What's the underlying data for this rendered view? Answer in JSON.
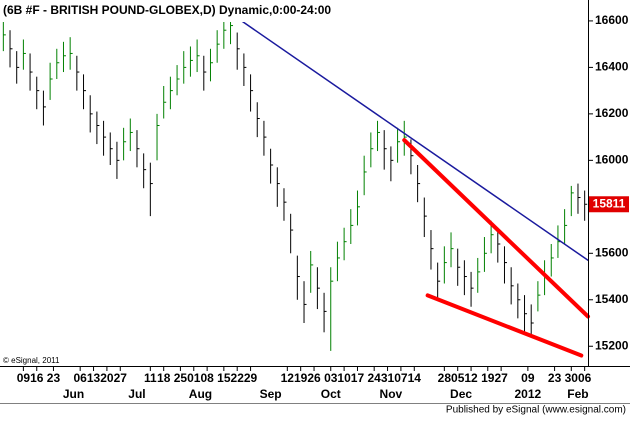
{
  "chart_data": {
    "type": "ohlc",
    "title": "(6B #F - BRITISH POUND-GLOBEX,D) Dynamic,0:00-24:00",
    "copyright": "© eSignal, 2011",
    "footer": "Published by eSignal (www.esignal.com)",
    "up_color": "#008000",
    "down_color": "#000000",
    "xlim": [
      0,
      176
    ],
    "ylim": [
      15115,
      16690
    ],
    "yticks": [
      15200,
      15400,
      15600,
      15800,
      16000,
      16200,
      16400,
      16600
    ],
    "xticks": [
      {
        "value": 7,
        "label": "09"
      },
      {
        "value": 11,
        "label": "16"
      },
      {
        "value": 16,
        "label": "23"
      },
      {
        "value": 24,
        "label": "06"
      },
      {
        "value": 28,
        "label": "13"
      },
      {
        "value": 32,
        "label": "20"
      },
      {
        "value": 36,
        "label": "27"
      },
      {
        "value": 45,
        "label": "11"
      },
      {
        "value": 49,
        "label": "18"
      },
      {
        "value": 54,
        "label": "25"
      },
      {
        "value": 58,
        "label": "01"
      },
      {
        "value": 62,
        "label": "08"
      },
      {
        "value": 67,
        "label": "15"
      },
      {
        "value": 71,
        "label": "22"
      },
      {
        "value": 75,
        "label": "29"
      },
      {
        "value": 86,
        "label": "12"
      },
      {
        "value": 90,
        "label": "19"
      },
      {
        "value": 94,
        "label": "26"
      },
      {
        "value": 99,
        "label": "03"
      },
      {
        "value": 103,
        "label": "10"
      },
      {
        "value": 107,
        "label": "17"
      },
      {
        "value": 112,
        "label": "24"
      },
      {
        "value": 116,
        "label": "31"
      },
      {
        "value": 120,
        "label": "07"
      },
      {
        "value": 124,
        "label": "14"
      },
      {
        "value": 133,
        "label": "28"
      },
      {
        "value": 137,
        "label": "05"
      },
      {
        "value": 141,
        "label": "12"
      },
      {
        "value": 146,
        "label": "19"
      },
      {
        "value": 150,
        "label": "27"
      },
      {
        "value": 158,
        "label": "09"
      },
      {
        "value": 166,
        "label": "23"
      },
      {
        "value": 171,
        "label": "30"
      },
      {
        "value": 175,
        "label": "06"
      }
    ],
    "month_labels": [
      {
        "value": 22,
        "label": "Jun"
      },
      {
        "value": 41,
        "label": "Jul"
      },
      {
        "value": 60,
        "label": "Aug"
      },
      {
        "value": 81,
        "label": "Sep"
      },
      {
        "value": 99,
        "label": "Oct"
      },
      {
        "value": 117,
        "label": "Nov"
      },
      {
        "value": 138,
        "label": "Dec"
      },
      {
        "value": 158,
        "label": "2012"
      },
      {
        "value": 173,
        "label": "Feb"
      }
    ],
    "x": [
      1,
      3,
      5,
      7,
      9,
      11,
      13,
      15,
      17,
      19,
      21,
      23,
      25,
      27,
      29,
      31,
      33,
      35,
      37,
      39,
      41,
      43,
      45,
      47,
      49,
      51,
      53,
      55,
      57,
      59,
      61,
      63,
      65,
      67,
      69,
      71,
      73,
      75,
      77,
      79,
      81,
      83,
      85,
      87,
      89,
      91,
      93,
      95,
      97,
      99,
      101,
      103,
      105,
      107,
      109,
      111,
      113,
      115,
      117,
      119,
      121,
      123,
      125,
      127,
      129,
      131,
      133,
      135,
      137,
      139,
      141,
      143,
      145,
      147,
      149,
      151,
      153,
      155,
      157,
      159,
      161,
      163,
      165,
      167,
      169,
      171,
      173,
      175
    ],
    "high": [
      16610,
      16560,
      16470,
      16520,
      16460,
      16360,
      16300,
      16420,
      16480,
      16510,
      16530,
      16450,
      16370,
      16280,
      16210,
      16170,
      16120,
      16080,
      16140,
      16180,
      16130,
      16030,
      15990,
      16200,
      16320,
      16360,
      16410,
      16470,
      16490,
      16520,
      16450,
      16480,
      16560,
      16610,
      16640,
      16550,
      16460,
      16370,
      16250,
      16170,
      16050,
      15970,
      15880,
      15770,
      15590,
      15480,
      15610,
      15540,
      15430,
      15540,
      15650,
      15710,
      15790,
      15870,
      16020,
      16120,
      16170,
      16130,
      16060,
      16140,
      16170,
      16090,
      15980,
      15840,
      15700,
      15560,
      15630,
      15690,
      15620,
      15570,
      15520,
      15580,
      15670,
      15740,
      15710,
      15630,
      15540,
      15470,
      15420,
      15380,
      15480,
      15570,
      15640,
      15720,
      15790,
      15890,
      15900,
      15870
    ],
    "low": [
      16470,
      16400,
      16330,
      16390,
      16300,
      16220,
      16150,
      16260,
      16350,
      16380,
      16390,
      16300,
      16220,
      16120,
      16070,
      16020,
      15980,
      15920,
      16000,
      16040,
      15970,
      15880,
      15760,
      16000,
      16180,
      16220,
      16280,
      16330,
      16360,
      16380,
      16300,
      16340,
      16420,
      16480,
      16500,
      16390,
      16320,
      16210,
      16100,
      16020,
      15900,
      15800,
      15740,
      15600,
      15400,
      15300,
      15430,
      15360,
      15260,
      15180,
      15480,
      15570,
      15640,
      15720,
      15850,
      15970,
      16040,
      15960,
      15910,
      15990,
      16020,
      15940,
      15820,
      15670,
      15530,
      15400,
      15470,
      15540,
      15460,
      15420,
      15370,
      15430,
      15520,
      15600,
      15560,
      15470,
      15380,
      15320,
      15260,
      15240,
      15350,
      15420,
      15500,
      15580,
      15640,
      15760,
      15770,
      15740
    ],
    "close": [
      16540,
      16480,
      16400,
      16460,
      16380,
      16300,
      16230,
      16350,
      16420,
      16450,
      16460,
      16380,
      16300,
      16200,
      16150,
      16100,
      16050,
      16000,
      16080,
      16120,
      16050,
      15960,
      15900,
      16150,
      16250,
      16300,
      16350,
      16400,
      16430,
      16450,
      16380,
      16420,
      16500,
      16560,
      16580,
      16480,
      16400,
      16300,
      16180,
      16100,
      15980,
      15900,
      15820,
      15700,
      15500,
      15380,
      15550,
      15450,
      15350,
      15480,
      15580,
      15650,
      15720,
      15800,
      15950,
      16050,
      16120,
      16050,
      16000,
      16080,
      16100,
      16020,
      15900,
      15760,
      15620,
      15480,
      15560,
      15620,
      15540,
      15500,
      15450,
      15520,
      15600,
      15680,
      15640,
      15560,
      15460,
      15400,
      15340,
      15300,
      15420,
      15500,
      15580,
      15650,
      15720,
      15860,
      15840,
      15811
    ],
    "trendlines": [
      {
        "color": "#1a1a9e",
        "width": 1.5,
        "x": [
          71,
          176
        ],
        "y": [
          16613,
          15570
        ]
      },
      {
        "color": "#ff0000",
        "width": 4,
        "x": [
          121,
          176
        ],
        "y": [
          16087,
          15328
        ]
      },
      {
        "color": "#ff0000",
        "width": 4,
        "x": [
          128,
          174
        ],
        "y": [
          15419,
          15160
        ]
      }
    ]
  }
}
